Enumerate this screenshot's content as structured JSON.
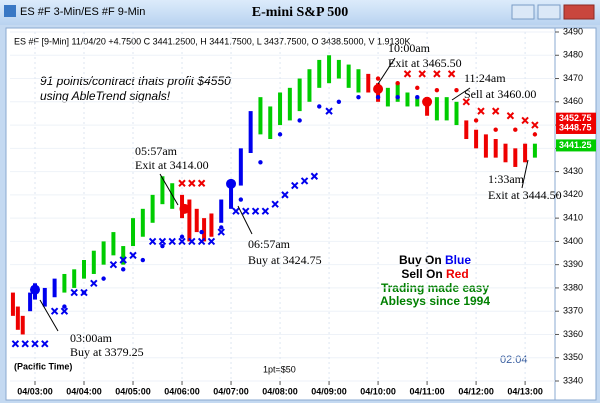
{
  "chart_data": {
    "type": "range-bar",
    "window_title": "ES #F 3-Min/ES #F 9-Min",
    "title": "E-mini S&P 500",
    "header": "ES #F [9-Min] 11/04/20  +4.7500 C 3441.2500, H 3441.7500, L 3437.7500, O 3438.5000, V 1.9130K",
    "promo": [
      "91 points/contract thats profit $4550",
      "using AbleTrend signals!"
    ],
    "signal_legend": [
      {
        "text": "Buy On",
        "word": "Blue",
        "color": "#0000ee"
      },
      {
        "text": "Sell On",
        "word": "Red",
        "color": "#ee0000"
      }
    ],
    "tagline": [
      "Trading made easy",
      "Ablesys since 1994"
    ],
    "tagline_color": "#008000",
    "annotations": [
      "03:00am",
      "Buy at 3379.25",
      "05:57am",
      "Exit at 3414.00",
      "06:57am",
      "Buy at 3424.75",
      "10:00am",
      "Exit at 3465.50",
      "11:24am",
      "Sell at 3460.00",
      "1:33am",
      "Exit at 3444.50"
    ],
    "timezone": "(Pacific Time)",
    "point_value": "1pt=$50",
    "clock": "02:04",
    "xlim": [
      2.49,
      13.61
    ],
    "xticks": [
      {
        "value": 3,
        "label": "04/03:00"
      },
      {
        "value": 4,
        "label": "04/04:00"
      },
      {
        "value": 5,
        "label": "04/05:00"
      },
      {
        "value": 6,
        "label": "04/06:00"
      },
      {
        "value": 7,
        "label": "04/07:00"
      },
      {
        "value": 8,
        "label": "04/08:00"
      },
      {
        "value": 9,
        "label": "04/09:00"
      },
      {
        "value": 10,
        "label": "04/10:00"
      },
      {
        "value": 11,
        "label": "04/11:00"
      },
      {
        "value": 12,
        "label": "04/12:00"
      },
      {
        "value": 13,
        "label": "04/13:00"
      }
    ],
    "ylim": [
      3340,
      3490
    ],
    "yticks": [
      3340,
      3350,
      3360,
      3370,
      3380,
      3390,
      3400,
      3410,
      3420,
      3430,
      3440,
      3450,
      3460,
      3470,
      3480,
      3490
    ],
    "grid": true,
    "series": [
      {
        "color": "#ee0000",
        "x": [
          2.55,
          2.65,
          2.75,
          6.0,
          6.15,
          6.3,
          6.45,
          6.6,
          9.8,
          10.0,
          11.0,
          11.8,
          12.0,
          12.2,
          12.4,
          12.6,
          12.8,
          13.0
        ],
        "high": [
          3378,
          3372,
          3368,
          3420,
          3418,
          3414,
          3410,
          3412,
          3472,
          3468,
          3462,
          3452,
          3448,
          3446,
          3444,
          3442,
          3440,
          3442
        ],
        "low": [
          3368,
          3362,
          3360,
          3410,
          3400,
          3404,
          3400,
          3402,
          3464,
          3460,
          3454,
          3444,
          3440,
          3436,
          3436,
          3434,
          3432,
          3434
        ]
      },
      {
        "color": "#00cc00",
        "x": [
          3.6,
          3.8,
          4.0,
          4.2,
          4.4,
          4.6,
          4.8,
          5.0,
          5.2,
          5.4,
          5.6,
          5.8,
          7.6,
          7.8,
          8.0,
          8.2,
          8.4,
          8.6,
          8.8,
          9.0,
          9.2,
          9.4,
          9.6,
          10.2,
          10.4,
          10.6,
          10.8,
          11.2,
          11.4,
          11.6,
          13.2
        ],
        "high": [
          3386,
          3388,
          3392,
          3396,
          3400,
          3404,
          3398,
          3410,
          3414,
          3420,
          3428,
          3425,
          3462,
          3458,
          3464,
          3466,
          3470,
          3474,
          3478,
          3480,
          3478,
          3476,
          3474,
          3466,
          3468,
          3464,
          3462,
          3462,
          3462,
          3460,
          3442
        ],
        "low": [
          3378,
          3380,
          3384,
          3386,
          3390,
          3394,
          3390,
          3398,
          3402,
          3408,
          3416,
          3414,
          3446,
          3444,
          3450,
          3452,
          3456,
          3460,
          3466,
          3468,
          3470,
          3466,
          3464,
          3458,
          3460,
          3458,
          3458,
          3452,
          3452,
          3450,
          3436
        ]
      },
      {
        "color": "#0000ee",
        "x": [
          2.9,
          3.0,
          3.2,
          3.4,
          6.8,
          7.0,
          7.2,
          7.4
        ],
        "high": [
          3378,
          3382,
          3380,
          3384,
          3418,
          3424,
          3440,
          3456
        ],
        "low": [
          3370,
          3375,
          3372,
          3376,
          3408,
          3414,
          3424,
          3438
        ]
      }
    ],
    "markers": [
      {
        "shape": "dot",
        "color": "#0000ee",
        "x": [
          3.6,
          4.0,
          4.4,
          4.8,
          5.2,
          5.6,
          6.0,
          6.4,
          6.8,
          7.2,
          7.6,
          8.0,
          8.4,
          8.8,
          9.2,
          9.6,
          10.0,
          10.4,
          10.8
        ],
        "values": [
          3372,
          3378,
          3384,
          3388,
          3392,
          3398,
          3402,
          3404,
          3406,
          3418,
          3434,
          3446,
          3452,
          3458,
          3460,
          3462,
          3462,
          3462,
          3462
        ]
      },
      {
        "shape": "x",
        "color": "#0000ee",
        "x": [
          2.6,
          2.8,
          3.0,
          3.2,
          3.4,
          3.6,
          3.8,
          4.0,
          4.2,
          4.6,
          4.8,
          5.0,
          5.4,
          5.6,
          5.8,
          6.0,
          6.2,
          6.4,
          6.6,
          6.8,
          7.1,
          7.3,
          7.5,
          7.7,
          7.9,
          8.1,
          8.3,
          8.5,
          8.7,
          9.0
        ],
        "values": [
          3356,
          3356,
          3356,
          3356,
          3370,
          3370,
          3378,
          3378,
          3382,
          3390,
          3392,
          3394,
          3400,
          3400,
          3400,
          3400,
          3400,
          3400,
          3400,
          3404,
          3413,
          3413,
          3413,
          3413,
          3416,
          3420,
          3424,
          3426,
          3428,
          3456
        ]
      },
      {
        "shape": "dot",
        "color": "#ee0000",
        "x": [
          10.0,
          10.4,
          10.8,
          11.2,
          11.6,
          12.0,
          12.4,
          12.8,
          13.2
        ],
        "values": [
          3470,
          3468,
          3466,
          3465,
          3465,
          3452,
          3448,
          3448,
          3446
        ]
      },
      {
        "shape": "x",
        "color": "#ee0000",
        "x": [
          6.0,
          6.2,
          6.4,
          10.6,
          10.9,
          11.2,
          11.5,
          11.8,
          12.1,
          12.4,
          12.7,
          13.0,
          13.2
        ],
        "values": [
          3425,
          3425,
          3425,
          3472,
          3472,
          3472,
          3472,
          3460,
          3456,
          3456,
          3454,
          3452,
          3450
        ]
      }
    ],
    "signals": [
      {
        "color": "#0000ee",
        "x": [
          3.0,
          7.0
        ],
        "values": [
          3379.25,
          3424.75
        ]
      },
      {
        "color": "#ee0000",
        "x": [
          6.05,
          10.0,
          11.0
        ],
        "values": [
          3414,
          3465.5,
          3460
        ]
      }
    ],
    "price_tags": [
      {
        "value": 3452.75,
        "color": "#ee0000"
      },
      {
        "value": 3448.75,
        "color": "#ee0000"
      },
      {
        "value": 3441.25,
        "color": "#00cc00"
      }
    ]
  }
}
